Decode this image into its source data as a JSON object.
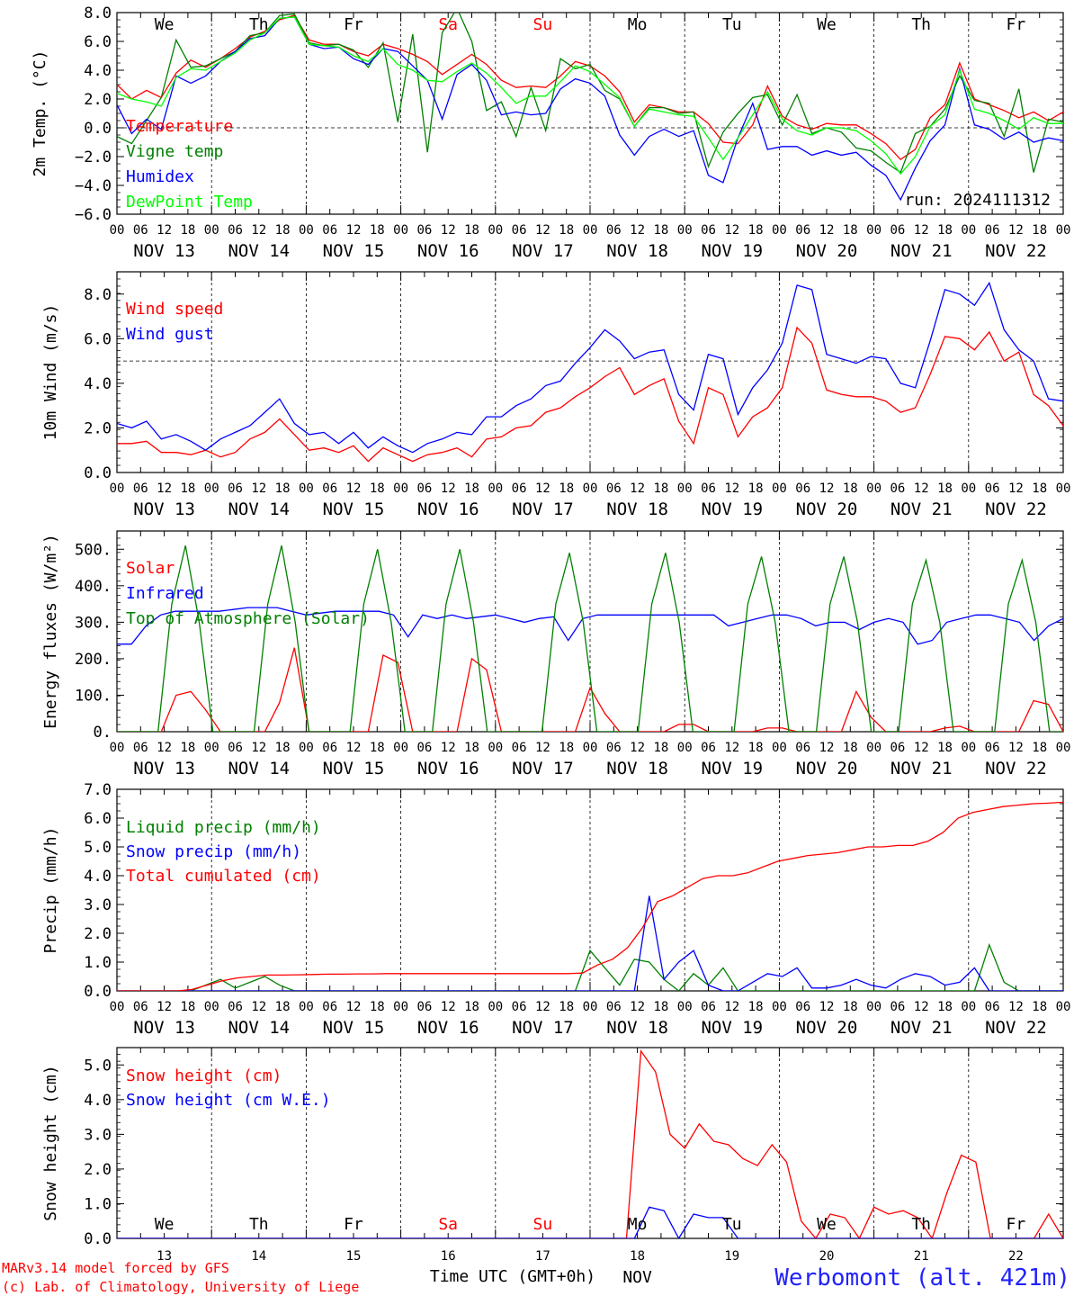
{
  "run_label": "run: 2024111312",
  "station_label": "Werbomont (alt. 421m)",
  "credit_lines": [
    "MARv3.14 model forced by GFS",
    "(c) Lab. of Climatology, University of Liege"
  ],
  "xaxis_title": "Time UTC (GMT+0h)",
  "xaxis_month": "NOV",
  "hour_ticks": [
    "00",
    "06",
    "12",
    "18"
  ],
  "day_labels": [
    "NOV 13",
    "NOV 14",
    "NOV 15",
    "NOV 16",
    "NOV 17",
    "NOV 18",
    "NOV 19",
    "NOV 20",
    "NOV 21",
    "NOV 22"
  ],
  "day_numbers": [
    "13",
    "14",
    "15",
    "16",
    "17",
    "18",
    "19",
    "20",
    "21",
    "22"
  ],
  "weekdays": [
    {
      "label": "We",
      "color": "#000000"
    },
    {
      "label": "Th",
      "color": "#000000"
    },
    {
      "label": "Fr",
      "color": "#000000"
    },
    {
      "label": "Sa",
      "color": "#ff0000"
    },
    {
      "label": "Su",
      "color": "#ff0000"
    },
    {
      "label": "Mo",
      "color": "#000000"
    },
    {
      "label": "Tu",
      "color": "#000000"
    },
    {
      "label": "We",
      "color": "#000000"
    },
    {
      "label": "Th",
      "color": "#000000"
    },
    {
      "label": "Fr",
      "color": "#000000"
    }
  ],
  "colors": {
    "red": "#ff0000",
    "green": "#008000",
    "blue": "#0000ff",
    "lime": "#00ff00"
  },
  "chart_data": [
    {
      "id": "temp",
      "type": "line",
      "ylabel": "2m Temp. (°C)",
      "ylim": [
        -6,
        8
      ],
      "yticks": [
        "8.0",
        "6.0",
        "4.0",
        "2.0",
        "0.0",
        "−2.0",
        "−4.0",
        "−6.0"
      ],
      "reference_line": 0,
      "series": [
        {
          "name": "Temperature",
          "color": "#ff0000",
          "values": [
            3,
            2,
            2.6,
            2.1,
            3.8,
            4.7,
            4.2,
            4.8,
            5.5,
            6.3,
            6.7,
            7.5,
            7.8,
            6.1,
            5.8,
            5.8,
            5.3,
            5,
            5.8,
            5.5,
            5.1,
            4.6,
            3.7,
            4.4,
            5.1,
            4.4,
            3.3,
            2.8,
            2.9,
            2.8,
            3.6,
            4.6,
            4.3,
            3.6,
            2.5,
            0.4,
            1.6,
            1.4,
            1.1,
            1.1,
            0.3,
            -1,
            -1.1,
            0.2,
            2.9,
            0.8,
            0.2,
            -0.1,
            0.3,
            0.2,
            0.2,
            -0.4,
            -1.1,
            -2.2,
            -1.5,
            0.7,
            1.6,
            4.5,
            2,
            1.6,
            1.2,
            0.7,
            1.1,
            0.5,
            1.1
          ]
        },
        {
          "name": "Vigne temp",
          "color": "#008000",
          "values": [
            -0.6,
            -1.1,
            0.5,
            2.1,
            6.1,
            4.2,
            4.3,
            4.8,
            5.3,
            6.4,
            6.6,
            7.8,
            7.9,
            5.9,
            5.7,
            5.8,
            5.4,
            4.2,
            5.9,
            0.4,
            6.5,
            -1.7,
            6.6,
            8.3,
            6,
            1.2,
            1.8,
            -0.6,
            2.8,
            -0.2,
            4.8,
            4.1,
            4.4,
            2.6,
            2,
            0.1,
            1.4,
            1.4,
            1,
            1.1,
            -2.7,
            -0.3,
            1,
            2.1,
            2.3,
            0.2,
            2.3,
            -0.4,
            0,
            -0.3,
            -1.4,
            -1.6,
            -2.4,
            -3.1,
            -0.4,
            0.1,
            1.3,
            3.6,
            1.9,
            1.7,
            -0.6,
            2.7,
            -3.1,
            0.6,
            0.4
          ]
        },
        {
          "name": "Humidex",
          "color": "#0000ff",
          "values": [
            1.6,
            -0.4,
            0.6,
            -0.1,
            3.6,
            3.1,
            3.6,
            4.6,
            5.3,
            6.2,
            6.4,
            7.6,
            7.7,
            5.8,
            5.5,
            5.6,
            4.8,
            4.4,
            5.5,
            5.3,
            4.3,
            3.3,
            0.6,
            3.7,
            4.4,
            3.3,
            0.9,
            1.1,
            0.9,
            1,
            2.7,
            3.4,
            3.1,
            2.2,
            -0.5,
            -1.9,
            -0.6,
            -0.1,
            -0.6,
            -0.2,
            -3.3,
            -3.8,
            -0.7,
            1.7,
            -1.5,
            -1.3,
            -1.3,
            -1.9,
            -1.6,
            -1.9,
            -1.7,
            -2.6,
            -3.3,
            -5,
            -2.8,
            -0.9,
            0.2,
            4.1,
            0.2,
            -0.1,
            -0.8,
            -0.3,
            -1,
            -0.7,
            -0.9
          ]
        },
        {
          "name": "DewPoint Temp",
          "color": "#00ff00",
          "values": [
            2.4,
            2,
            1.8,
            1.5,
            3.5,
            4.1,
            4,
            4.6,
            5.2,
            6.1,
            6.6,
            7.6,
            7.7,
            5.8,
            5.7,
            5.6,
            5,
            4.6,
            5.5,
            4.4,
            4,
            3.3,
            3.2,
            3.9,
            4.5,
            3.8,
            2.8,
            1.7,
            2.2,
            2.2,
            3.2,
            4.3,
            3.9,
            3,
            2.1,
            0.1,
            1.3,
            1.1,
            0.9,
            0.8,
            -0.7,
            -2.2,
            -0.7,
            0.9,
            2.5,
            0.6,
            -0.2,
            -0.5,
            0,
            0,
            -0.2,
            -0.9,
            -1.8,
            -3.2,
            -2,
            0.1,
            0.9,
            4,
            1.3,
            1,
            0.5,
            -0.1,
            0.7,
            0.3,
            0.3
          ]
        }
      ]
    },
    {
      "id": "wind",
      "type": "line",
      "ylabel": "10m Wind (m/s)",
      "ylim": [
        0,
        9
      ],
      "yticks": [
        "8.0",
        "6.0",
        "4.0",
        "2.0",
        "0.0"
      ],
      "reference_line": 5,
      "series": [
        {
          "name": "Wind speed",
          "color": "#ff0000",
          "values": [
            1.3,
            1.3,
            1.4,
            0.9,
            0.9,
            0.8,
            1,
            0.7,
            0.9,
            1.5,
            1.8,
            2.4,
            1.7,
            1,
            1.1,
            0.9,
            1.2,
            0.5,
            1.1,
            0.8,
            0.5,
            0.8,
            0.9,
            1.1,
            0.7,
            1.5,
            1.6,
            2,
            2.1,
            2.7,
            2.9,
            3.4,
            3.8,
            4.3,
            4.7,
            3.5,
            3.9,
            4.2,
            2.3,
            1.3,
            3.8,
            3.5,
            1.6,
            2.5,
            2.9,
            3.8,
            6.5,
            5.8,
            3.7,
            3.5,
            3.4,
            3.4,
            3.2,
            2.7,
            2.9,
            4.4,
            6.1,
            6,
            5.5,
            6.3,
            5,
            5.4,
            3.5,
            3,
            2.1
          ]
        },
        {
          "name": "Wind gust",
          "color": "#0000ff",
          "values": [
            2.2,
            2,
            2.3,
            1.5,
            1.7,
            1.4,
            1,
            1.5,
            1.8,
            2.1,
            2.7,
            3.3,
            2.2,
            1.7,
            1.8,
            1.3,
            1.8,
            1.1,
            1.6,
            1.2,
            0.9,
            1.3,
            1.5,
            1.8,
            1.7,
            2.5,
            2.5,
            3,
            3.3,
            3.9,
            4.1,
            4.9,
            5.6,
            6.4,
            5.9,
            5.1,
            5.4,
            5.5,
            3.5,
            2.8,
            5.3,
            5.1,
            2.6,
            3.8,
            4.6,
            5.8,
            8.4,
            8.2,
            5.3,
            5.1,
            4.9,
            5.2,
            5.1,
            4,
            3.8,
            5.9,
            8.2,
            8,
            7.5,
            8.5,
            6.4,
            5.5,
            5,
            3.3,
            3.2
          ]
        }
      ]
    },
    {
      "id": "energy",
      "type": "line",
      "ylabel": "Energy fluxes (W/m²)",
      "ylim": [
        0,
        550
      ],
      "yticks": [
        "500.",
        "400.",
        "300.",
        "200.",
        "100.",
        "0."
      ],
      "series": [
        {
          "name": "Solar",
          "color": "#ff0000",
          "values": [
            0,
            0,
            0,
            0,
            100,
            110,
            60,
            0,
            0,
            0,
            0,
            80,
            230,
            0,
            0,
            0,
            0,
            0,
            210,
            190,
            0,
            0,
            0,
            0,
            200,
            170,
            0,
            0,
            0,
            0,
            0,
            0,
            120,
            50,
            0,
            0,
            0,
            0,
            20,
            20,
            0,
            0,
            0,
            0,
            10,
            10,
            0,
            0,
            0,
            0,
            110,
            40,
            0,
            0,
            0,
            0,
            10,
            15,
            0,
            0,
            0,
            0,
            85,
            75,
            0
          ]
        },
        {
          "name": "Infrared",
          "color": "#0000ff",
          "values": [
            240,
            240,
            290,
            320,
            330,
            330,
            330,
            330,
            335,
            340,
            340,
            340,
            330,
            320,
            325,
            330,
            330,
            330,
            330,
            320,
            260,
            320,
            310,
            320,
            310,
            315,
            320,
            310,
            300,
            310,
            315,
            250,
            310,
            320,
            320,
            320,
            320,
            320,
            320,
            320,
            320,
            320,
            290,
            300,
            310,
            320,
            320,
            310,
            290,
            300,
            300,
            280,
            300,
            310,
            300,
            240,
            250,
            300,
            310,
            320,
            320,
            310,
            300,
            250,
            290,
            310
          ]
        },
        {
          "name": "Top of Atmosphere (Solar)",
          "color": "#008000",
          "values": [
            0,
            0,
            0,
            0,
            350,
            510,
            300,
            0,
            0,
            0,
            0,
            350,
            510,
            300,
            0,
            0,
            0,
            0,
            350,
            500,
            300,
            0,
            0,
            0,
            350,
            500,
            300,
            0,
            0,
            0,
            0,
            0,
            350,
            490,
            300,
            0,
            0,
            0,
            0,
            350,
            490,
            300,
            0,
            0,
            0,
            0,
            350,
            480,
            300,
            0,
            0,
            0,
            350,
            480,
            300,
            0,
            0,
            0,
            350,
            470,
            300,
            0,
            0,
            0,
            0,
            350,
            470,
            300,
            0,
            0
          ]
        }
      ]
    },
    {
      "id": "precip",
      "type": "line",
      "ylabel": "Precip (mm/h)",
      "ylim": [
        0,
        7
      ],
      "yticks": [
        "7.0",
        "6.0",
        "5.0",
        "4.0",
        "3.0",
        "2.0",
        "1.0",
        "0.0"
      ],
      "series": [
        {
          "name": "Liquid precip (mm/h)",
          "color": "#008000",
          "values": [
            0,
            0,
            0,
            0,
            0,
            0,
            0.2,
            0.4,
            0.1,
            0.3,
            0.5,
            0.2,
            0,
            0,
            0,
            0,
            0,
            0,
            0,
            0,
            0,
            0,
            0,
            0,
            0,
            0,
            0,
            0,
            0,
            0,
            0,
            0,
            1.4,
            0.8,
            0.2,
            1.1,
            1,
            0.4,
            0,
            0.6,
            0.2,
            0.8,
            0,
            0,
            0,
            0,
            0,
            0,
            0,
            0,
            0,
            0,
            0,
            0,
            0,
            0,
            0,
            0,
            0,
            1.6,
            0.3,
            0,
            0,
            0,
            0
          ]
        },
        {
          "name": "Snow precip (mm/h)",
          "color": "#0000ff",
          "values": [
            0,
            0,
            0,
            0,
            0,
            0,
            0,
            0,
            0,
            0,
            0,
            0,
            0,
            0,
            0,
            0,
            0,
            0,
            0,
            0,
            0,
            0,
            0,
            0,
            0,
            0,
            0,
            0,
            0,
            0,
            0,
            0,
            0,
            0,
            0,
            0,
            3.3,
            0.4,
            1,
            1.4,
            0.2,
            0,
            0,
            0.3,
            0.6,
            0.5,
            0.8,
            0.1,
            0.1,
            0.2,
            0.4,
            0.2,
            0.1,
            0.4,
            0.6,
            0.5,
            0.2,
            0.3,
            0.8,
            0,
            0,
            0,
            0,
            0,
            0
          ]
        },
        {
          "name": "Total cumulated (cm)",
          "color": "#ff0000",
          "values": [
            0,
            0,
            0,
            0,
            0,
            0.05,
            0.2,
            0.35,
            0.45,
            0.5,
            0.55,
            0.55,
            0.56,
            0.57,
            0.58,
            0.58,
            0.59,
            0.59,
            0.6,
            0.6,
            0.6,
            0.6,
            0.6,
            0.6,
            0.6,
            0.6,
            0.6,
            0.6,
            0.6,
            0.6,
            0.6,
            0.62,
            0.9,
            1.1,
            1.5,
            2.2,
            3.1,
            3.3,
            3.6,
            3.9,
            4,
            4,
            4.1,
            4.3,
            4.5,
            4.6,
            4.7,
            4.75,
            4.8,
            4.9,
            5,
            5,
            5.05,
            5.05,
            5.2,
            5.5,
            6,
            6.2,
            6.3,
            6.4,
            6.45,
            6.5,
            6.52,
            6.55
          ]
        }
      ]
    },
    {
      "id": "snow",
      "type": "line",
      "ylabel": "Snow height (cm)",
      "ylim": [
        0,
        5.5
      ],
      "yticks": [
        "5.0",
        "4.0",
        "3.0",
        "2.0",
        "1.0",
        "0.0"
      ],
      "series": [
        {
          "name": "Snow height (cm)",
          "color": "#ff0000",
          "values": [
            0,
            0,
            0,
            0,
            0,
            0,
            0,
            0,
            0,
            0,
            0,
            0,
            0,
            0,
            0,
            0,
            0,
            0,
            0,
            0,
            0,
            0,
            0,
            0,
            0,
            0,
            0,
            0,
            0,
            0,
            0,
            0,
            0,
            0,
            0,
            0,
            5.4,
            4.8,
            3,
            2.6,
            3.3,
            2.8,
            2.7,
            2.3,
            2.1,
            2.7,
            2.2,
            0.5,
            0,
            0.7,
            0.6,
            0,
            0.9,
            0.7,
            0.8,
            0.6,
            0,
            1.3,
            2.4,
            2.2,
            0,
            0,
            0,
            0,
            0.7,
            0
          ]
        },
        {
          "name": "Snow height (cm W.E.)",
          "color": "#0000ff",
          "values": [
            0,
            0,
            0,
            0,
            0,
            0,
            0,
            0,
            0,
            0,
            0,
            0,
            0,
            0,
            0,
            0,
            0,
            0,
            0,
            0,
            0,
            0,
            0,
            0,
            0,
            0,
            0,
            0,
            0,
            0,
            0,
            0,
            0,
            0,
            0,
            0,
            0.9,
            0.8,
            0,
            0.7,
            0.6,
            0.6,
            0,
            0,
            0,
            0,
            0,
            0,
            0,
            0,
            0,
            0,
            0,
            0,
            0,
            0,
            0,
            0,
            0,
            0,
            0,
            0,
            0,
            0,
            0
          ]
        }
      ]
    }
  ]
}
